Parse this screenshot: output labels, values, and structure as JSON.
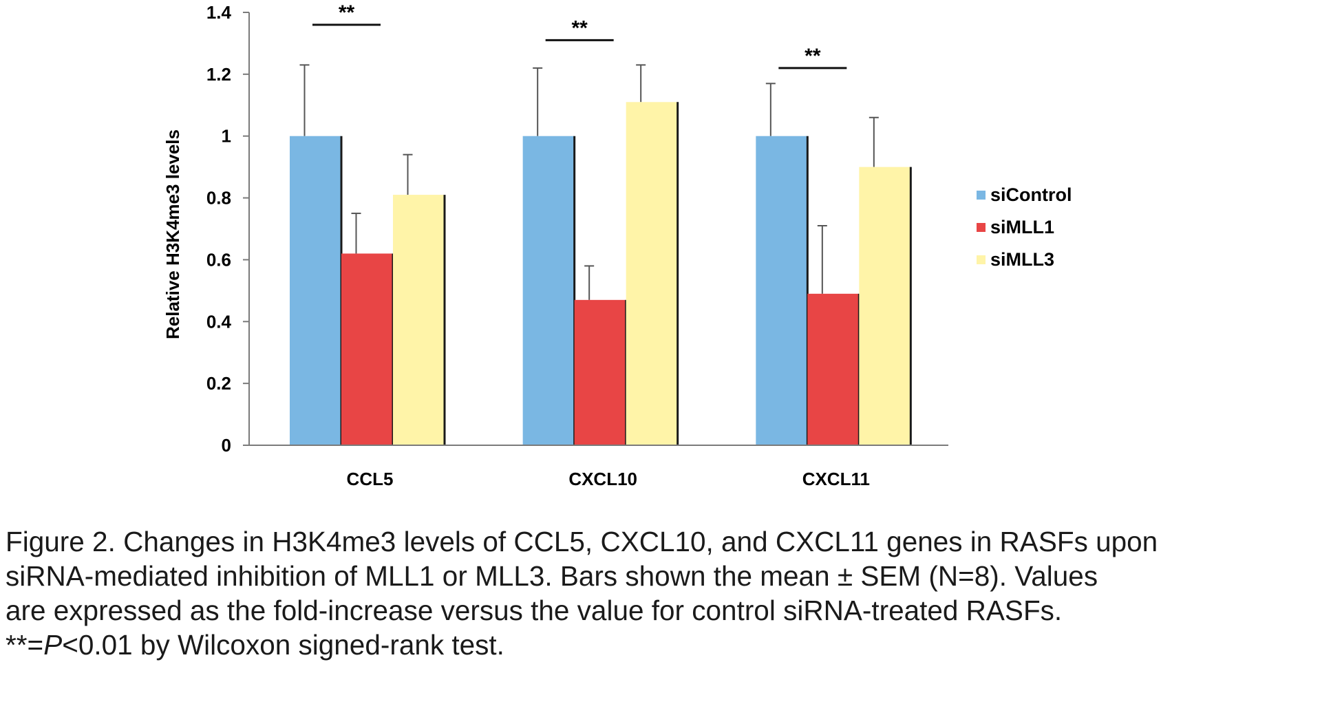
{
  "chart_data": {
    "type": "bar",
    "categories": [
      "CCL5",
      "CXCL10",
      "CXCL11"
    ],
    "series": [
      {
        "name": "siControl",
        "color": "#7ab7e3",
        "values": [
          1.0,
          1.0,
          1.0
        ],
        "errors": [
          0.23,
          0.22,
          0.17
        ]
      },
      {
        "name": "siMLL1",
        "color": "#e84545",
        "values": [
          0.62,
          0.47,
          0.49
        ],
        "errors": [
          0.13,
          0.11,
          0.22
        ]
      },
      {
        "name": "siMLL3",
        "color": "#fff4a8",
        "values": [
          0.81,
          1.11,
          0.9
        ],
        "errors": [
          0.13,
          0.12,
          0.16
        ]
      }
    ],
    "ylabel": "Relative H3K4me3 levels",
    "xlabel": "",
    "ylim": [
      0,
      1.4
    ],
    "yticks": [
      "0",
      "0.2",
      "0.4",
      "0.6",
      "0.8",
      "1",
      "1.2",
      "1.4"
    ],
    "legend_position": "right",
    "significance": [
      {
        "category": "CCL5",
        "between": [
          "siControl",
          "siMLL1"
        ],
        "label": "**"
      },
      {
        "category": "CXCL10",
        "between": [
          "siControl",
          "siMLL1"
        ],
        "label": "**"
      },
      {
        "category": "CXCL11",
        "between": [
          "siControl",
          "siMLL1"
        ],
        "label": "**"
      }
    ],
    "sig_bar_values": [
      1.36,
      1.31,
      1.22
    ]
  },
  "caption": {
    "line1": "Figure 2. Changes in H3K4me3 levels of CCL5, CXCL10, and CXCL11 genes in RASFs upon",
    "line2": "siRNA-mediated inhibition of MLL1 or MLL3. Bars shown the mean ± SEM (N=8). Values",
    "line3": "are expressed as the fold-increase versus the value for control siRNA-treated RASFs.",
    "line4_prefix": "**=",
    "line4_p": "P",
    "line4_rest": "<0.01 by Wilcoxon signed-rank test."
  }
}
